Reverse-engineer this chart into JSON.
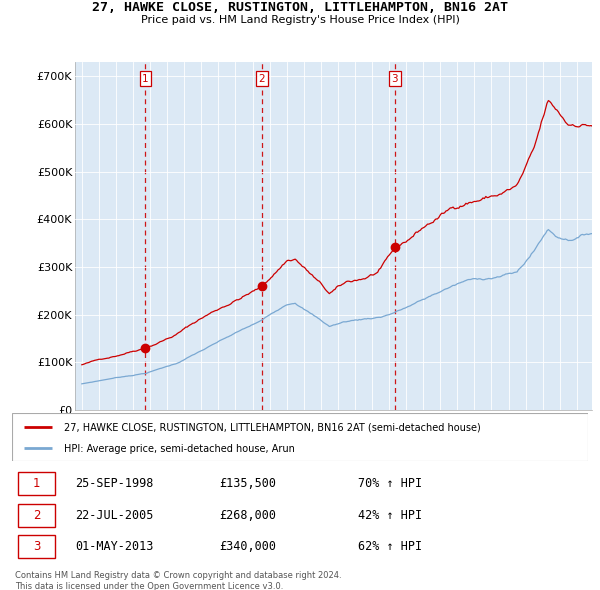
{
  "title": "27, HAWKE CLOSE, RUSTINGTON, LITTLEHAMPTON, BN16 2AT",
  "subtitle": "Price paid vs. HM Land Registry's House Price Index (HPI)",
  "ylabel_ticks": [
    "£0",
    "£100K",
    "£200K",
    "£300K",
    "£400K",
    "£500K",
    "£600K",
    "£700K"
  ],
  "ytick_values": [
    0,
    100000,
    200000,
    300000,
    400000,
    500000,
    600000,
    700000
  ],
  "ylim": [
    0,
    730000
  ],
  "xlim_start": 1994.6,
  "xlim_end": 2024.9,
  "sales": [
    {
      "label": "1",
      "date": "25-SEP-1998",
      "price": 135500,
      "pct": "70% ↑ HPI",
      "x": 1998.73
    },
    {
      "label": "2",
      "date": "22-JUL-2005",
      "price": 268000,
      "pct": "42% ↑ HPI",
      "x": 2005.55
    },
    {
      "label": "3",
      "date": "01-MAY-2013",
      "price": 340000,
      "pct": "62% ↑ HPI",
      "x": 2013.33
    }
  ],
  "legend_entries": [
    "27, HAWKE CLOSE, RUSTINGTON, LITTLEHAMPTON, BN16 2AT (semi-detached house)",
    "HPI: Average price, semi-detached house, Arun"
  ],
  "footer": "Contains HM Land Registry data © Crown copyright and database right 2024.\nThis data is licensed under the Open Government Licence v3.0.",
  "table_rows": [
    [
      "1",
      "25-SEP-1998",
      "£135,500",
      "70% ↑ HPI"
    ],
    [
      "2",
      "22-JUL-2005",
      "£268,000",
      "42% ↑ HPI"
    ],
    [
      "3",
      "01-MAY-2013",
      "£340,000",
      "62% ↑ HPI"
    ]
  ],
  "red_color": "#cc0000",
  "blue_color": "#7aa8d2",
  "chart_bg": "#dce9f5",
  "grid_color": "#ffffff",
  "bg_color": "#ffffff"
}
